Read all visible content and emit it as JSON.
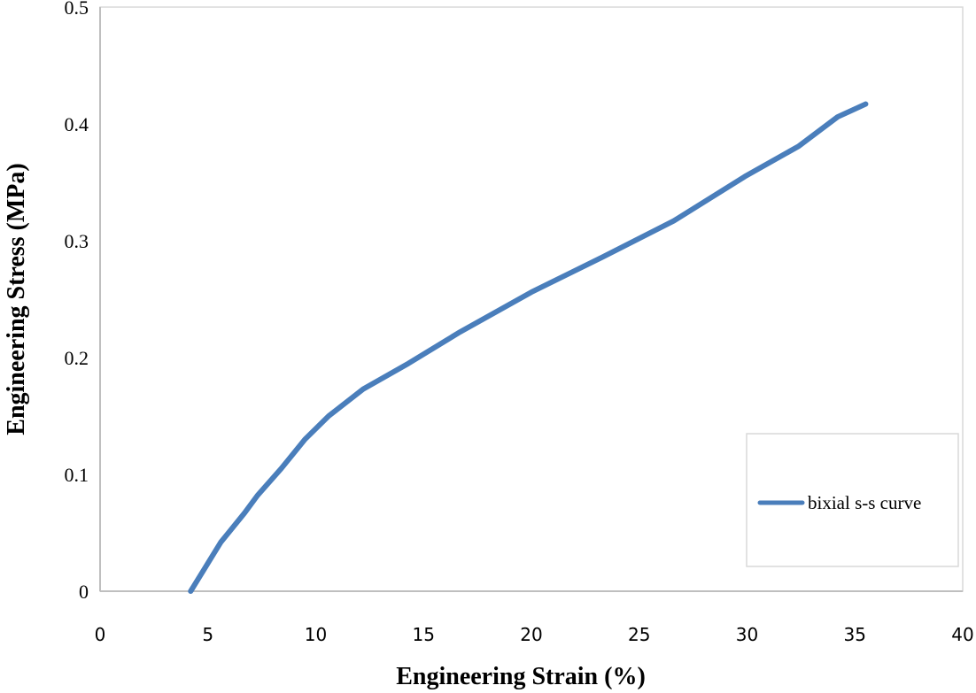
{
  "chart_data": {
    "type": "line",
    "title": "",
    "xlabel": "Engineering  Strain (%)",
    "ylabel": "Engineering  Stress (MPa)",
    "xlim": [
      0,
      40
    ],
    "ylim": [
      0,
      0.5
    ],
    "xticks": [
      "0",
      "5",
      "10",
      "15",
      "20",
      "25",
      "30",
      "35",
      "40"
    ],
    "yticks": [
      "0",
      "0.1",
      "0.2",
      "0.3",
      "0.4",
      "0.5"
    ],
    "grid": false,
    "legend_position": "bottom-right",
    "series": [
      {
        "name": "bixial s-s curve",
        "color": "#4a7ebb",
        "x": [
          4.2,
          4.9,
          5.6,
          6.7,
          7.3,
          8.4,
          9.5,
          10.6,
          12.2,
          14.3,
          16.7,
          20.0,
          23.3,
          26.6,
          29.9,
          32.4,
          34.2,
          35.5
        ],
        "y": [
          0.0,
          0.021,
          0.042,
          0.067,
          0.082,
          0.105,
          0.13,
          0.15,
          0.173,
          0.195,
          0.222,
          0.256,
          0.286,
          0.317,
          0.355,
          0.381,
          0.406,
          0.417
        ]
      }
    ]
  }
}
